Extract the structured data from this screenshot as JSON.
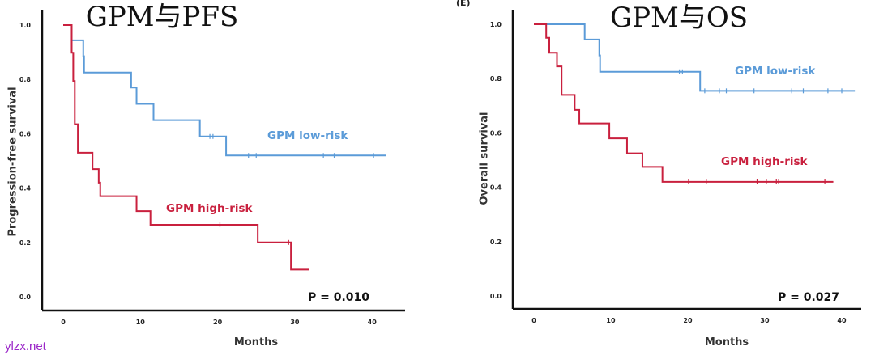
{
  "panel_label": "(E)",
  "watermark": "ylzx.net",
  "colors": {
    "low_risk": "#5b9bd8",
    "high_risk": "#c9203e",
    "axis": "#111111"
  },
  "chart_data": [
    {
      "type": "line",
      "subtype": "kaplan-meier",
      "title": "GPM与PFS",
      "xlabel": "Months",
      "ylabel": "Progression-free survival",
      "xlim": [
        0,
        40
      ],
      "ylim": [
        0,
        1
      ],
      "xticks": [
        "0",
        "10",
        "20",
        "30",
        "40"
      ],
      "yticks": [
        "0.0",
        "0.2",
        "0.4",
        "0.6",
        "0.8",
        "1.0"
      ],
      "annotation": "P = 0.010",
      "series": [
        {
          "name": "GPM low-risk",
          "color_key": "low_risk",
          "steps": [
            [
              1.1,
              0.944
            ],
            [
              2.6,
              0.885
            ],
            [
              2.7,
              0.825
            ],
            [
              8.8,
              0.77
            ],
            [
              9.5,
              0.71
            ],
            [
              11.7,
              0.65
            ],
            [
              17.7,
              0.59
            ],
            [
              21.1,
              0.52
            ]
          ],
          "end": 41.8,
          "censored": [
            19.0,
            19.4,
            24.0,
            25.0,
            33.7,
            35.1,
            40.2
          ]
        },
        {
          "name": "GPM high-risk",
          "color_key": "high_risk",
          "steps": [
            [
              0,
              1.0
            ],
            [
              1.1,
              0.898
            ],
            [
              1.3,
              0.794
            ],
            [
              1.5,
              0.635
            ],
            [
              1.9,
              0.53
            ],
            [
              3.8,
              0.47
            ],
            [
              4.6,
              0.42
            ],
            [
              4.8,
              0.37
            ],
            [
              9.5,
              0.315
            ],
            [
              11.3,
              0.265
            ],
            [
              25.2,
              0.2
            ],
            [
              29.5,
              0.1
            ]
          ],
          "end": 31.8,
          "censored": [
            20.3,
            29.2
          ]
        }
      ]
    },
    {
      "type": "line",
      "subtype": "kaplan-meier",
      "title": "GPM与OS",
      "xlabel": "Months",
      "ylabel": "Overall survival",
      "xlim": [
        0,
        40
      ],
      "ylim": [
        0,
        1
      ],
      "xticks": [
        "0",
        "10",
        "20",
        "30",
        "40"
      ],
      "yticks": [
        "0.0",
        "0.2",
        "0.4",
        "0.6",
        "0.8",
        "1.0"
      ],
      "annotation": "P = 0.027",
      "series": [
        {
          "name": "GPM low-risk",
          "color_key": "low_risk",
          "steps": [
            [
              0,
              1.0
            ],
            [
              6.6,
              0.944
            ],
            [
              8.5,
              0.885
            ],
            [
              8.6,
              0.825
            ],
            [
              21.6,
              0.755
            ]
          ],
          "end": 41.7,
          "censored": [
            18.9,
            19.3,
            22.2,
            24.1,
            25.0,
            28.6,
            33.5,
            35.0,
            38.2,
            40.0
          ]
        },
        {
          "name": "GPM high-risk",
          "color_key": "high_risk",
          "steps": [
            [
              0,
              1.0
            ],
            [
              1.6,
              0.95
            ],
            [
              2.0,
              0.895
            ],
            [
              3.0,
              0.845
            ],
            [
              3.6,
              0.74
            ],
            [
              5.3,
              0.685
            ],
            [
              5.9,
              0.635
            ],
            [
              9.8,
              0.58
            ],
            [
              12.1,
              0.525
            ],
            [
              14.1,
              0.475
            ],
            [
              16.7,
              0.42
            ]
          ],
          "end": 38.9,
          "censored": [
            20.1,
            22.4,
            29.0,
            30.2,
            31.5,
            31.8,
            37.8
          ]
        }
      ]
    }
  ]
}
